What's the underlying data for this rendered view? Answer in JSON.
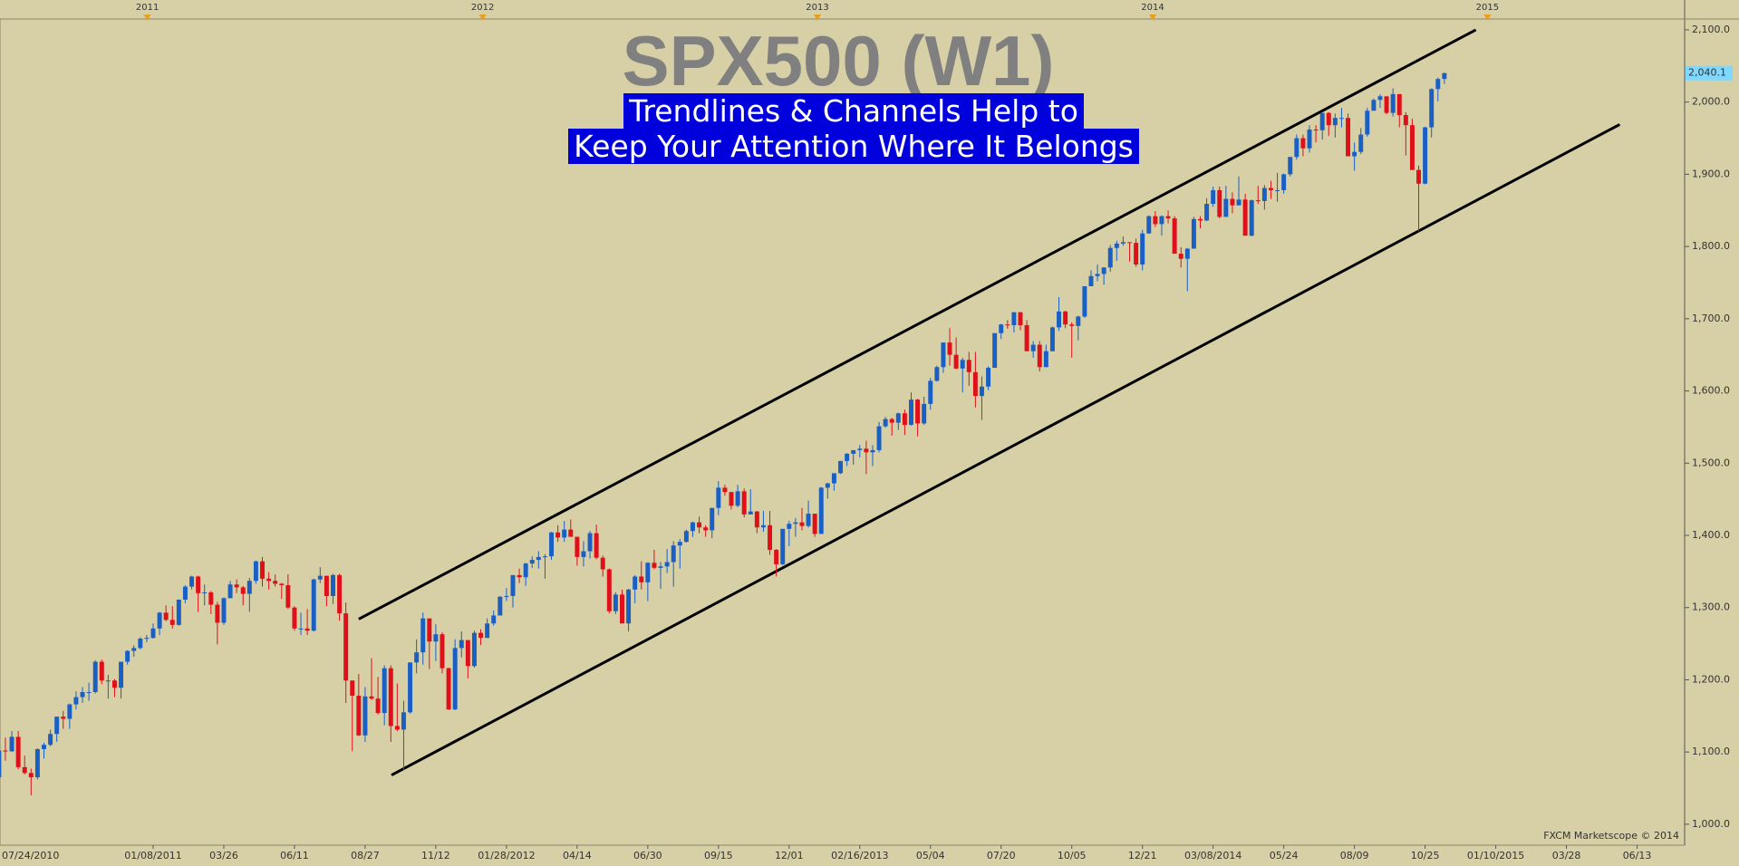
{
  "chart_data": {
    "type": "candlestick",
    "title": "SPX500 (W1)",
    "subtitle": [
      "Trendlines & Channels Help to",
      "Keep Your Attention Where It Belongs"
    ],
    "footer": "FXCM Marketscope © 2014",
    "up_color": "#1a5fc4",
    "down_color": "#e0101a",
    "wick_color": "#333333",
    "last_price": {
      "value": 2040.1,
      "label": "2,040.1"
    },
    "xlim": [
      0.16,
      262.4
    ],
    "xticks": [
      {
        "value": 0,
        "label": "07/24/2010"
      },
      {
        "value": 24,
        "label": "01/08/2011"
      },
      {
        "value": 35,
        "label": "03/26"
      },
      {
        "value": 46,
        "label": "06/11"
      },
      {
        "value": 57,
        "label": "08/27"
      },
      {
        "value": 68,
        "label": "11/12"
      },
      {
        "value": 79,
        "label": "01/28/2012"
      },
      {
        "value": 90,
        "label": "04/14"
      },
      {
        "value": 101,
        "label": "06/30"
      },
      {
        "value": 112,
        "label": "09/15"
      },
      {
        "value": 123,
        "label": "12/01"
      },
      {
        "value": 134,
        "label": "02/16/2013"
      },
      {
        "value": 145,
        "label": "05/04"
      },
      {
        "value": 156,
        "label": "07/20"
      },
      {
        "value": 167,
        "label": "10/05"
      },
      {
        "value": 178,
        "label": "12/21"
      },
      {
        "value": 189,
        "label": "03/08/2014"
      },
      {
        "value": 200,
        "label": "05/24"
      },
      {
        "value": 211,
        "label": "08/09"
      },
      {
        "value": 222,
        "label": "10/25"
      },
      {
        "value": 233,
        "label": "01/10/2015"
      },
      {
        "value": 244,
        "label": "03/28"
      },
      {
        "value": 255,
        "label": "06/13"
      }
    ],
    "year_ticks": [
      {
        "value": 23.1,
        "label": "2011"
      },
      {
        "value": 75.3,
        "label": "2012"
      },
      {
        "value": 127.4,
        "label": "2013"
      },
      {
        "value": 179.6,
        "label": "2014"
      },
      {
        "value": 231.7,
        "label": "2015"
      }
    ],
    "ylim": [
      971,
      2115
    ],
    "yticks": [
      {
        "value": 1000,
        "label": "1,000.0"
      },
      {
        "value": 1100,
        "label": "1,100.0"
      },
      {
        "value": 1200,
        "label": "1,200.0"
      },
      {
        "value": 1300,
        "label": "1,300.0"
      },
      {
        "value": 1400,
        "label": "1,400.0"
      },
      {
        "value": 1500,
        "label": "1,500.0"
      },
      {
        "value": 1600,
        "label": "1,600.0"
      },
      {
        "value": 1700,
        "label": "1,700.0"
      },
      {
        "value": 1800,
        "label": "1,800.0"
      },
      {
        "value": 1900,
        "label": "1,900.0"
      },
      {
        "value": 2000,
        "label": "2,000.0"
      },
      {
        "value": 2100,
        "label": "2,100.0"
      }
    ],
    "trendlines": [
      {
        "x": [
          56,
          229.9
        ],
        "y": [
          1284,
          2100
        ]
      },
      {
        "x": [
          61.1,
          252.3
        ],
        "y": [
          1068,
          1969
        ]
      }
    ],
    "candles": [
      [
        1065,
        1103,
        1056,
        1102
      ],
      [
        1102,
        1120,
        1088,
        1101
      ],
      [
        1101,
        1129,
        1100,
        1121
      ],
      [
        1121,
        1129,
        1076,
        1079
      ],
      [
        1079,
        1095,
        1069,
        1071
      ],
      [
        1071,
        1077,
        1040,
        1065
      ],
      [
        1065,
        1105,
        1062,
        1104
      ],
      [
        1104,
        1113,
        1091,
        1110
      ],
      [
        1110,
        1131,
        1108,
        1125
      ],
      [
        1125,
        1149,
        1114,
        1149
      ],
      [
        1149,
        1157,
        1132,
        1146
      ],
      [
        1146,
        1167,
        1132,
        1166
      ],
      [
        1166,
        1184,
        1159,
        1176
      ],
      [
        1176,
        1190,
        1168,
        1183
      ],
      [
        1183,
        1196,
        1171,
        1183
      ],
      [
        1183,
        1227,
        1181,
        1225
      ],
      [
        1225,
        1228,
        1194,
        1199
      ],
      [
        1199,
        1207,
        1174,
        1199
      ],
      [
        1199,
        1201,
        1176,
        1189
      ],
      [
        1189,
        1225,
        1174,
        1225
      ],
      [
        1225,
        1241,
        1221,
        1240
      ],
      [
        1240,
        1248,
        1232,
        1244
      ],
      [
        1244,
        1259,
        1242,
        1257
      ],
      [
        1257,
        1262,
        1252,
        1258
      ],
      [
        1258,
        1278,
        1257,
        1271
      ],
      [
        1271,
        1294,
        1262,
        1293
      ],
      [
        1293,
        1303,
        1281,
        1283
      ],
      [
        1283,
        1302,
        1271,
        1276
      ],
      [
        1276,
        1311,
        1275,
        1311
      ],
      [
        1311,
        1331,
        1306,
        1329
      ],
      [
        1329,
        1344,
        1325,
        1343
      ],
      [
        1343,
        1344,
        1294,
        1320
      ],
      [
        1320,
        1332,
        1303,
        1321
      ],
      [
        1321,
        1323,
        1291,
        1304
      ],
      [
        1304,
        1308,
        1249,
        1279
      ],
      [
        1279,
        1314,
        1276,
        1313
      ],
      [
        1313,
        1337,
        1313,
        1332
      ],
      [
        1332,
        1339,
        1320,
        1328
      ],
      [
        1328,
        1330,
        1303,
        1319
      ],
      [
        1319,
        1341,
        1294,
        1337
      ],
      [
        1337,
        1365,
        1333,
        1364
      ],
      [
        1364,
        1370,
        1329,
        1340
      ],
      [
        1340,
        1349,
        1325,
        1337
      ],
      [
        1337,
        1346,
        1329,
        1333
      ],
      [
        1333,
        1334,
        1312,
        1331
      ],
      [
        1331,
        1346,
        1298,
        1300
      ],
      [
        1300,
        1302,
        1268,
        1271
      ],
      [
        1271,
        1293,
        1262,
        1271
      ],
      [
        1271,
        1298,
        1262,
        1268
      ],
      [
        1268,
        1340,
        1267,
        1339
      ],
      [
        1339,
        1356,
        1334,
        1344
      ],
      [
        1344,
        1344,
        1302,
        1316
      ],
      [
        1316,
        1347,
        1305,
        1345
      ],
      [
        1345,
        1347,
        1282,
        1292
      ],
      [
        1292,
        1307,
        1168,
        1199
      ],
      [
        1199,
        1199,
        1101,
        1178
      ],
      [
        1178,
        1208,
        1122,
        1123
      ],
      [
        1123,
        1190,
        1114,
        1177
      ],
      [
        1177,
        1230,
        1172,
        1174
      ],
      [
        1174,
        1204,
        1152,
        1154
      ],
      [
        1154,
        1220,
        1137,
        1216
      ],
      [
        1216,
        1220,
        1114,
        1136
      ],
      [
        1136,
        1195,
        1129,
        1131
      ],
      [
        1131,
        1171,
        1075,
        1155
      ],
      [
        1155,
        1224,
        1153,
        1224
      ],
      [
        1224,
        1256,
        1209,
        1238
      ],
      [
        1238,
        1293,
        1221,
        1285
      ],
      [
        1285,
        1285,
        1215,
        1253
      ],
      [
        1253,
        1277,
        1226,
        1263
      ],
      [
        1263,
        1266,
        1209,
        1216
      ],
      [
        1216,
        1217,
        1158,
        1159
      ],
      [
        1159,
        1256,
        1158,
        1244
      ],
      [
        1244,
        1267,
        1231,
        1255
      ],
      [
        1255,
        1255,
        1202,
        1219
      ],
      [
        1219,
        1268,
        1217,
        1265
      ],
      [
        1265,
        1270,
        1248,
        1258
      ],
      [
        1258,
        1285,
        1258,
        1278
      ],
      [
        1278,
        1296,
        1275,
        1289
      ],
      [
        1289,
        1316,
        1289,
        1315
      ],
      [
        1315,
        1327,
        1309,
        1316
      ],
      [
        1316,
        1345,
        1300,
        1345
      ],
      [
        1345,
        1354,
        1334,
        1342
      ],
      [
        1342,
        1362,
        1330,
        1361
      ],
      [
        1361,
        1371,
        1355,
        1366
      ],
      [
        1366,
        1378,
        1354,
        1370
      ],
      [
        1370,
        1374,
        1340,
        1371
      ],
      [
        1371,
        1405,
        1366,
        1404
      ],
      [
        1404,
        1414,
        1391,
        1397
      ],
      [
        1397,
        1420,
        1391,
        1408
      ],
      [
        1408,
        1422,
        1398,
        1398
      ],
      [
        1398,
        1398,
        1358,
        1370
      ],
      [
        1370,
        1392,
        1357,
        1378
      ],
      [
        1378,
        1406,
        1368,
        1403
      ],
      [
        1403,
        1415,
        1367,
        1369
      ],
      [
        1369,
        1372,
        1343,
        1353
      ],
      [
        1353,
        1354,
        1292,
        1295
      ],
      [
        1295,
        1321,
        1291,
        1318
      ],
      [
        1318,
        1325,
        1278,
        1278
      ],
      [
        1278,
        1326,
        1267,
        1325
      ],
      [
        1325,
        1345,
        1306,
        1343
      ],
      [
        1343,
        1364,
        1325,
        1335
      ],
      [
        1335,
        1363,
        1309,
        1362
      ],
      [
        1362,
        1380,
        1353,
        1355
      ],
      [
        1355,
        1363,
        1326,
        1357
      ],
      [
        1357,
        1381,
        1348,
        1363
      ],
      [
        1363,
        1392,
        1329,
        1386
      ],
      [
        1386,
        1395,
        1354,
        1391
      ],
      [
        1391,
        1408,
        1390,
        1406
      ],
      [
        1406,
        1419,
        1398,
        1418
      ],
      [
        1418,
        1426,
        1403,
        1411
      ],
      [
        1411,
        1414,
        1398,
        1407
      ],
      [
        1407,
        1438,
        1396,
        1438
      ],
      [
        1438,
        1475,
        1428,
        1466
      ],
      [
        1466,
        1470,
        1455,
        1460
      ],
      [
        1460,
        1460,
        1436,
        1441
      ],
      [
        1441,
        1470,
        1439,
        1461
      ],
      [
        1461,
        1465,
        1425,
        1429
      ],
      [
        1429,
        1464,
        1429,
        1433
      ],
      [
        1433,
        1434,
        1403,
        1411
      ],
      [
        1411,
        1434,
        1405,
        1414
      ],
      [
        1414,
        1434,
        1373,
        1380
      ],
      [
        1380,
        1381,
        1343,
        1360
      ],
      [
        1360,
        1409,
        1359,
        1409
      ],
      [
        1409,
        1420,
        1385,
        1416
      ],
      [
        1416,
        1424,
        1398,
        1418
      ],
      [
        1418,
        1438,
        1407,
        1413
      ],
      [
        1413,
        1448,
        1411,
        1430
      ],
      [
        1430,
        1430,
        1398,
        1402
      ],
      [
        1402,
        1467,
        1402,
        1466
      ],
      [
        1466,
        1473,
        1451,
        1472
      ],
      [
        1472,
        1486,
        1462,
        1486
      ],
      [
        1486,
        1503,
        1485,
        1503
      ],
      [
        1503,
        1514,
        1496,
        1513
      ],
      [
        1513,
        1518,
        1498,
        1518
      ],
      [
        1518,
        1525,
        1508,
        1520
      ],
      [
        1520,
        1531,
        1485,
        1515
      ],
      [
        1515,
        1525,
        1496,
        1518
      ],
      [
        1518,
        1557,
        1515,
        1551
      ],
      [
        1551,
        1564,
        1549,
        1561
      ],
      [
        1561,
        1563,
        1538,
        1556
      ],
      [
        1556,
        1570,
        1546,
        1569
      ],
      [
        1569,
        1574,
        1539,
        1553
      ],
      [
        1553,
        1598,
        1552,
        1588
      ],
      [
        1588,
        1589,
        1537,
        1555
      ],
      [
        1555,
        1592,
        1553,
        1582
      ],
      [
        1582,
        1618,
        1574,
        1614
      ],
      [
        1614,
        1635,
        1613,
        1633
      ],
      [
        1633,
        1667,
        1625,
        1667
      ],
      [
        1667,
        1687,
        1635,
        1650
      ],
      [
        1650,
        1674,
        1630,
        1631
      ],
      [
        1631,
        1646,
        1598,
        1643
      ],
      [
        1643,
        1654,
        1607,
        1626
      ],
      [
        1626,
        1654,
        1577,
        1593
      ],
      [
        1593,
        1620,
        1560,
        1606
      ],
      [
        1606,
        1634,
        1601,
        1632
      ],
      [
        1632,
        1680,
        1632,
        1680
      ],
      [
        1680,
        1693,
        1672,
        1692
      ],
      [
        1692,
        1698,
        1686,
        1691
      ],
      [
        1691,
        1709,
        1681,
        1709
      ],
      [
        1709,
        1709,
        1684,
        1691
      ],
      [
        1691,
        1698,
        1655,
        1655
      ],
      [
        1655,
        1669,
        1646,
        1664
      ],
      [
        1664,
        1669,
        1627,
        1633
      ],
      [
        1633,
        1664,
        1633,
        1655
      ],
      [
        1655,
        1689,
        1655,
        1688
      ],
      [
        1688,
        1730,
        1683,
        1710
      ],
      [
        1710,
        1711,
        1687,
        1692
      ],
      [
        1692,
        1695,
        1646,
        1690
      ],
      [
        1690,
        1704,
        1670,
        1703
      ],
      [
        1703,
        1745,
        1701,
        1745
      ],
      [
        1745,
        1767,
        1745,
        1759
      ],
      [
        1759,
        1775,
        1752,
        1762
      ],
      [
        1762,
        1771,
        1747,
        1771
      ],
      [
        1771,
        1802,
        1765,
        1798
      ],
      [
        1798,
        1808,
        1780,
        1804
      ],
      [
        1804,
        1814,
        1801,
        1806
      ],
      [
        1806,
        1806,
        1779,
        1805
      ],
      [
        1805,
        1811,
        1772,
        1775
      ],
      [
        1775,
        1823,
        1767,
        1818
      ],
      [
        1818,
        1843,
        1818,
        1842
      ],
      [
        1842,
        1849,
        1827,
        1831
      ],
      [
        1831,
        1843,
        1815,
        1842
      ],
      [
        1842,
        1850,
        1832,
        1839
      ],
      [
        1839,
        1842,
        1790,
        1790
      ],
      [
        1790,
        1799,
        1771,
        1783
      ],
      [
        1783,
        1798,
        1738,
        1797
      ],
      [
        1797,
        1841,
        1797,
        1838
      ],
      [
        1838,
        1842,
        1825,
        1836
      ],
      [
        1836,
        1867,
        1835,
        1859
      ],
      [
        1859,
        1883,
        1855,
        1878
      ],
      [
        1878,
        1883,
        1839,
        1841
      ],
      [
        1841,
        1884,
        1841,
        1866
      ],
      [
        1866,
        1875,
        1846,
        1857
      ],
      [
        1857,
        1897,
        1857,
        1865
      ],
      [
        1865,
        1873,
        1815,
        1815
      ],
      [
        1815,
        1865,
        1814,
        1864
      ],
      [
        1864,
        1884,
        1859,
        1863
      ],
      [
        1863,
        1885,
        1851,
        1881
      ],
      [
        1881,
        1891,
        1866,
        1878
      ],
      [
        1878,
        1902,
        1862,
        1878
      ],
      [
        1878,
        1901,
        1873,
        1900
      ],
      [
        1900,
        1924,
        1897,
        1924
      ],
      [
        1924,
        1955,
        1920,
        1950
      ],
      [
        1950,
        1955,
        1925,
        1936
      ],
      [
        1936,
        1968,
        1930,
        1962
      ],
      [
        1962,
        1968,
        1944,
        1961
      ],
      [
        1961,
        1985,
        1948,
        1985
      ],
      [
        1985,
        1986,
        1953,
        1968
      ],
      [
        1968,
        1984,
        1951,
        1978
      ],
      [
        1978,
        1992,
        1965,
        1978
      ],
      [
        1978,
        1984,
        1925,
        1925
      ],
      [
        1925,
        1944,
        1905,
        1931
      ],
      [
        1931,
        1964,
        1928,
        1955
      ],
      [
        1955,
        1992,
        1952,
        1988
      ],
      [
        1988,
        2005,
        1988,
        2003
      ],
      [
        2003,
        2011,
        1992,
        2008
      ],
      [
        2008,
        2008,
        1983,
        1985
      ],
      [
        1985,
        2019,
        1980,
        2011
      ],
      [
        2011,
        2011,
        1965,
        1982
      ],
      [
        1982,
        1986,
        1926,
        1968
      ],
      [
        1968,
        1977,
        1906,
        1906
      ],
      [
        1906,
        1912,
        1821,
        1887
      ],
      [
        1887,
        1966,
        1886,
        1965
      ],
      [
        1965,
        2019,
        1951,
        2018
      ],
      [
        2018,
        2034,
        2001,
        2032
      ],
      [
        2032,
        2041,
        2025,
        2040
      ]
    ]
  }
}
